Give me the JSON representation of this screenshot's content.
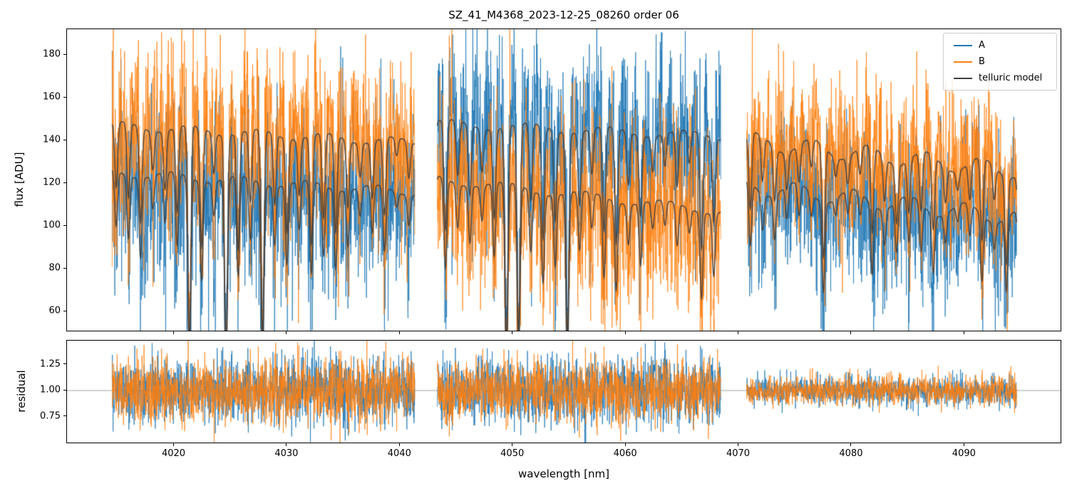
{
  "chart_data": {
    "type": "line",
    "title": "SZ_41_M4368_2023-12-25_08260  order 06",
    "xlabel": "wavelength [nm]",
    "xlim": [
      4010.5,
      4098.5
    ],
    "xticks": [
      4020,
      4030,
      4040,
      4050,
      4060,
      4070,
      4080,
      4090
    ],
    "top_panel": {
      "ylabel": "flux [ADU]",
      "ylim": [
        51,
        192
      ],
      "yticks": [
        60,
        80,
        100,
        120,
        140,
        160,
        180
      ]
    },
    "bottom_panel": {
      "ylabel": "residual",
      "ylim": [
        0.5,
        1.48
      ],
      "yticks": [
        0.75,
        1.0,
        1.25
      ],
      "hline": 1.0,
      "hline_color": "#999999"
    },
    "legend": [
      {
        "label": "A",
        "color": "#1f77b4"
      },
      {
        "label": "B",
        "color": "#ff7f0e"
      },
      {
        "label": "telluric model",
        "color": "#3f3f3f"
      }
    ],
    "series_colors": {
      "A": "#1f77b4",
      "B": "#ff7f0e",
      "telluric": "#3f3f3f"
    },
    "segments": [
      {
        "x_start": 4014.5,
        "x_end": 4041.3,
        "cont_upper": [
          147,
          139
        ],
        "cont_lower": [
          125,
          116
        ],
        "upper_series": "B",
        "noise_std": 21,
        "resid_std": 0.16,
        "wiggle_amp": 2.0,
        "wiggle_period": 6.0
      },
      {
        "x_start": 4043.3,
        "x_end": 4068.4,
        "cont_upper": [
          148,
          142
        ],
        "cont_lower": [
          122,
          107
        ],
        "upper_series": "A",
        "noise_std": 21,
        "resid_std": 0.16,
        "wiggle_amp": 2.0,
        "wiggle_period": 7.0
      },
      {
        "x_start": 4070.7,
        "x_end": 4094.6,
        "cont_upper": [
          140,
          126
        ],
        "cont_lower": [
          119,
          104
        ],
        "upper_series": "B",
        "noise_std": 18,
        "resid_std": 0.07,
        "wiggle_amp": 4.0,
        "wiggle_period": 5.0
      }
    ],
    "telluric": {
      "line_spacing_nm": 1.08,
      "line_width_nm": 0.13,
      "depth_min": 0.06,
      "depth_max": 0.45,
      "sample_step_nm": 0.02
    }
  }
}
